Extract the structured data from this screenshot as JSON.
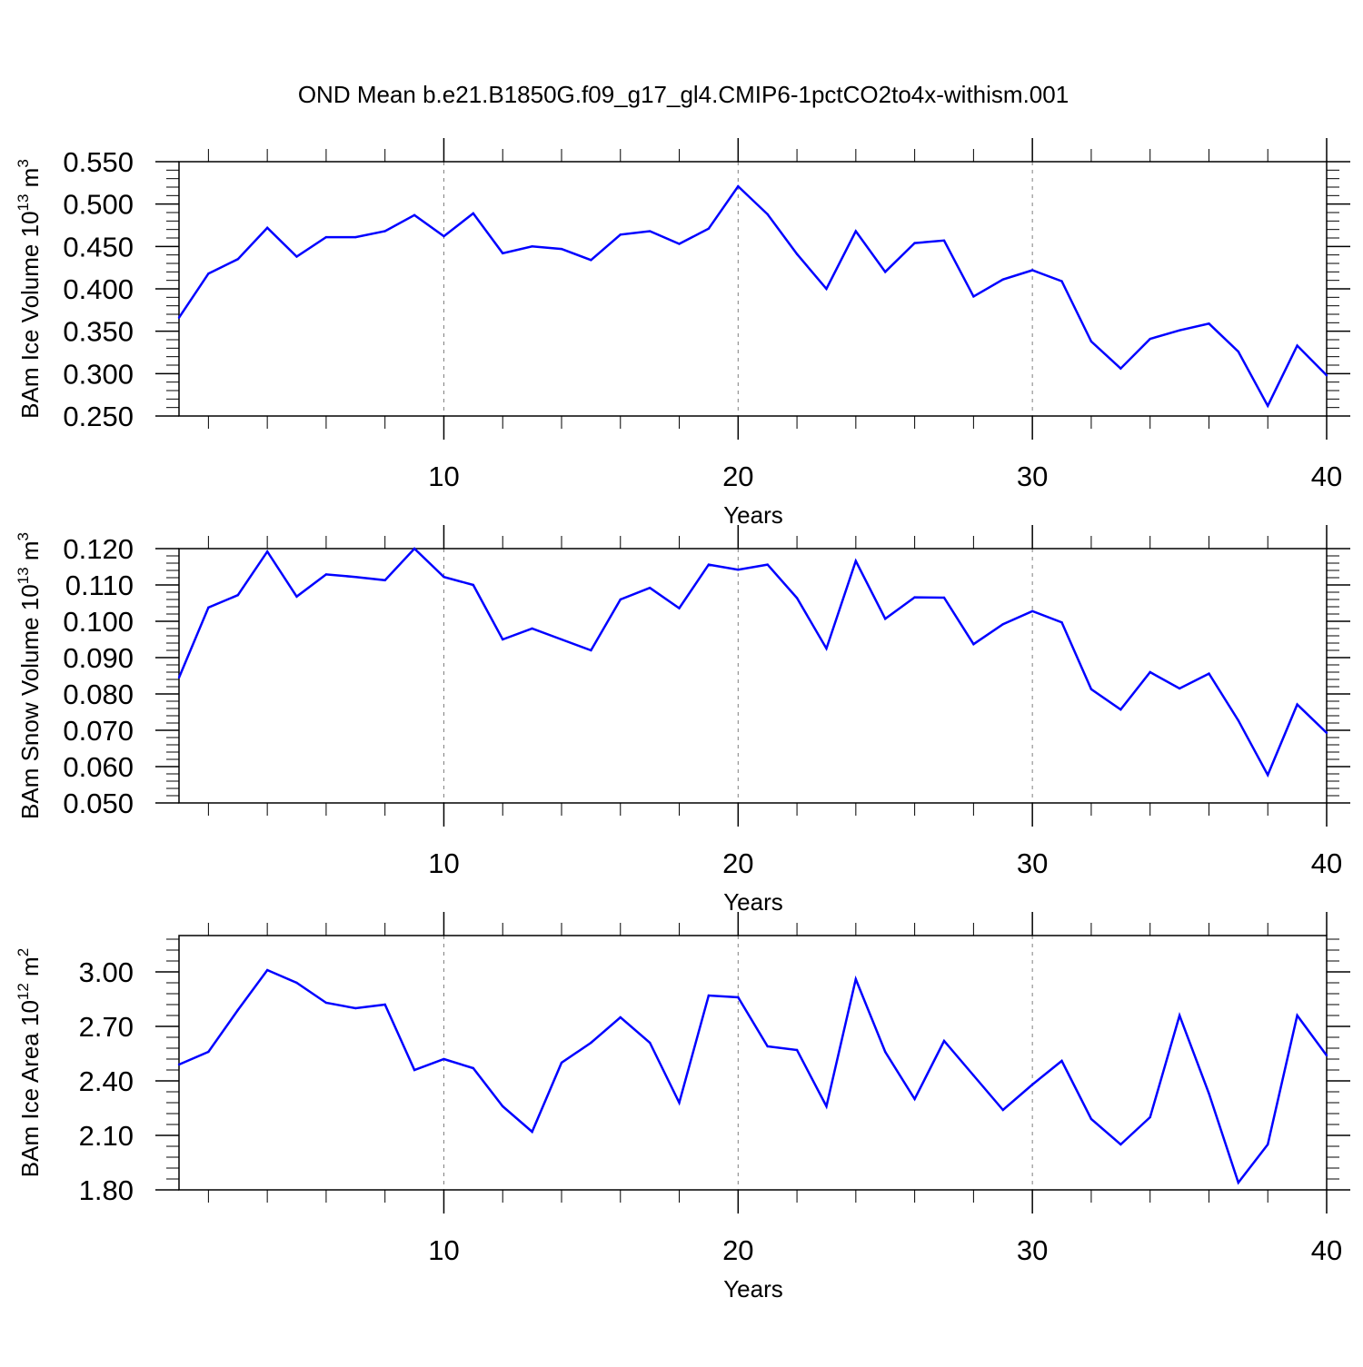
{
  "title": "OND Mean b.e21.B1850G.f09_g17_gl4.CMIP6-1pctCO2to4x-withism.001",
  "line_color": "#0000ff",
  "chart_data": [
    {
      "type": "line",
      "ylabel_main": "BAm Ice Volume 10",
      "ylabel_exp": "13",
      "ylabel_unit": " m",
      "ylabel_unit_exp": "3",
      "xlabel": "Years",
      "xlim": [
        1,
        40
      ],
      "ylim": [
        0.25,
        0.55
      ],
      "yticks": [
        0.25,
        0.3,
        0.35,
        0.4,
        0.45,
        0.5,
        0.55
      ],
      "ytick_labels": [
        "0.250",
        "0.300",
        "0.350",
        "0.400",
        "0.450",
        "0.500",
        "0.550"
      ],
      "xticks": [
        10,
        20,
        30,
        40
      ],
      "xtick_labels": [
        "10",
        "20",
        "30",
        "40"
      ],
      "x": [
        1,
        2,
        3,
        4,
        5,
        6,
        7,
        8,
        9,
        10,
        11,
        12,
        13,
        14,
        15,
        16,
        17,
        18,
        19,
        20,
        21,
        22,
        23,
        24,
        25,
        26,
        27,
        28,
        29,
        30,
        31,
        32,
        33,
        34,
        35,
        36,
        37,
        38,
        39,
        40
      ],
      "values": [
        0.366,
        0.418,
        0.435,
        0.472,
        0.438,
        0.461,
        0.461,
        0.468,
        0.487,
        0.462,
        0.489,
        0.442,
        0.45,
        0.447,
        0.434,
        0.464,
        0.468,
        0.453,
        0.471,
        0.521,
        0.488,
        0.441,
        0.4,
        0.468,
        0.42,
        0.454,
        0.457,
        0.391,
        0.411,
        0.422,
        0.409,
        0.338,
        0.306,
        0.341,
        0.351,
        0.359,
        0.326,
        0.262,
        0.333,
        0.298
      ]
    },
    {
      "type": "line",
      "ylabel_main": "BAm Snow Volume 10",
      "ylabel_exp": "13",
      "ylabel_unit": " m",
      "ylabel_unit_exp": "3",
      "xlabel": "Years",
      "xlim": [
        1,
        40
      ],
      "ylim": [
        0.05,
        0.12
      ],
      "yticks": [
        0.05,
        0.06,
        0.07,
        0.08,
        0.09,
        0.1,
        0.11,
        0.12
      ],
      "ytick_labels": [
        "0.050",
        "0.060",
        "0.070",
        "0.080",
        "0.090",
        "0.100",
        "0.110",
        "0.120"
      ],
      "xticks": [
        10,
        20,
        30,
        40
      ],
      "xtick_labels": [
        "10",
        "20",
        "30",
        "40"
      ],
      "x": [
        1,
        2,
        3,
        4,
        5,
        6,
        7,
        8,
        9,
        10,
        11,
        12,
        13,
        14,
        15,
        16,
        17,
        18,
        19,
        20,
        21,
        22,
        23,
        24,
        25,
        26,
        27,
        28,
        29,
        30,
        31,
        32,
        33,
        34,
        35,
        36,
        37,
        38,
        39,
        40
      ],
      "values": [
        0.0845,
        0.1038,
        0.1072,
        0.1192,
        0.1068,
        0.1129,
        0.1122,
        0.1113,
        0.12,
        0.1122,
        0.11,
        0.095,
        0.098,
        0.095,
        0.092,
        0.106,
        0.1092,
        0.1036,
        0.1156,
        0.1142,
        0.1156,
        0.1064,
        0.0925,
        0.1166,
        0.1007,
        0.1066,
        0.1065,
        0.0937,
        0.0992,
        0.1028,
        0.0997,
        0.0813,
        0.0757,
        0.086,
        0.0815,
        0.0856,
        0.0727,
        0.0577,
        0.0771,
        0.0693
      ]
    },
    {
      "type": "line",
      "ylabel_main": "BAm Ice Area 10",
      "ylabel_exp": "12",
      "ylabel_unit": " m",
      "ylabel_unit_exp": "2",
      "xlabel": "Years",
      "xlim": [
        1,
        40
      ],
      "ylim": [
        1.8,
        3.2
      ],
      "yticks": [
        1.8,
        2.1,
        2.4,
        2.7,
        3.0
      ],
      "ytick_labels": [
        "1.80",
        "2.10",
        "2.40",
        "2.70",
        "3.00"
      ],
      "xticks": [
        10,
        20,
        30,
        40
      ],
      "xtick_labels": [
        "10",
        "20",
        "30",
        "40"
      ],
      "x": [
        1,
        2,
        3,
        4,
        5,
        6,
        7,
        8,
        9,
        10,
        11,
        12,
        13,
        14,
        15,
        16,
        17,
        18,
        19,
        20,
        21,
        22,
        23,
        24,
        25,
        26,
        27,
        28,
        29,
        30,
        31,
        32,
        33,
        34,
        35,
        36,
        37,
        38,
        39,
        40
      ],
      "values": [
        2.49,
        2.56,
        2.79,
        3.01,
        2.94,
        2.83,
        2.8,
        2.82,
        2.46,
        2.52,
        2.47,
        2.26,
        2.12,
        2.5,
        2.61,
        2.75,
        2.61,
        2.28,
        2.87,
        2.86,
        2.59,
        2.57,
        2.26,
        2.96,
        2.56,
        2.3,
        2.62,
        2.43,
        2.24,
        2.38,
        2.51,
        2.19,
        2.05,
        2.2,
        2.76,
        2.33,
        1.84,
        2.05,
        2.76,
        2.54
      ]
    }
  ]
}
